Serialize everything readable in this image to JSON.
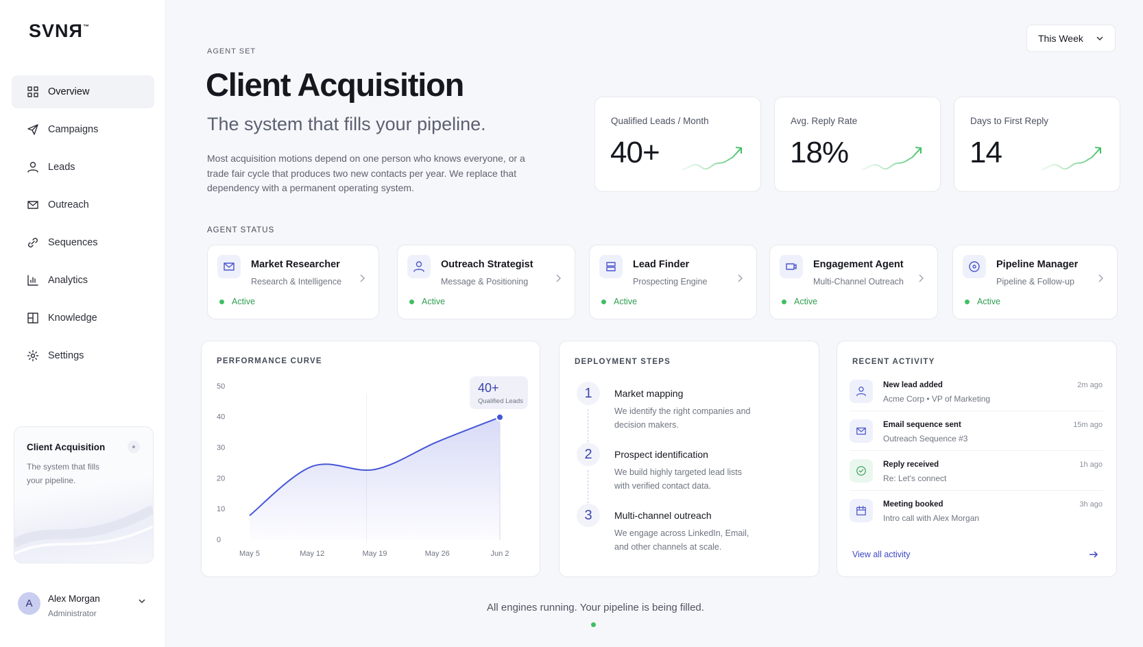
{
  "sidebar": {
    "logo": "SVNЯ",
    "trademark": "™",
    "nav": [
      "Overview",
      "Campaigns",
      "Leads",
      "Outreach",
      "Sequences",
      "Analytics",
      "Knowledge",
      "Settings"
    ],
    "card": {
      "title": "Client Acquisition",
      "text": "The system that fills your pipeline."
    },
    "user": {
      "initial": "A",
      "name": "Alex Morgan",
      "role": "Administrator"
    }
  },
  "header": {
    "eyebrow": "AGENT SET",
    "title": "Client Acquisition",
    "subtitle": "The system that fills your pipeline.",
    "description": "Most acquisition motions depend on one person who knows everyone, or a trade fair cycle that produces two new contacts per year. We replace that dependency with a permanent operating system.",
    "period": "This Week"
  },
  "metrics": [
    {
      "label": "Qualified Leads / Month",
      "value": "40+"
    },
    {
      "label": "Avg. Reply Rate",
      "value": "18%"
    },
    {
      "label": "Days to First Reply",
      "value": "14"
    }
  ],
  "agent_status": {
    "title": "AGENT STATUS",
    "agents": [
      {
        "name": "Market Researcher",
        "role": "Research & Intelligence",
        "status": "Active"
      },
      {
        "name": "Outreach Strategist",
        "role": "Message & Positioning",
        "status": "Active"
      },
      {
        "name": "Lead Finder",
        "role": "Prospecting Engine",
        "status": "Active"
      },
      {
        "name": "Engagement Agent",
        "role": "Multi-Channel Outreach",
        "status": "Active"
      },
      {
        "name": "Pipeline Manager",
        "role": "Pipeline & Follow-up",
        "status": "Active"
      }
    ]
  },
  "performance": {
    "title": "PERFORMANCE CURVE",
    "callout": {
      "value": "40+",
      "label": "Qualified Leads"
    },
    "chart": {
      "type": "line",
      "categories": [
        "May 5",
        "May 12",
        "May 19",
        "May 26",
        "Jun 2"
      ],
      "values": [
        8,
        24,
        23,
        32,
        40
      ],
      "ylim": [
        0,
        50
      ],
      "yticks": [
        0,
        10,
        20,
        30,
        40,
        50
      ],
      "color": "#4656d6"
    }
  },
  "deployment": {
    "title": "DEPLOYMENT STEPS",
    "steps": [
      {
        "number": 1,
        "title": "Market mapping",
        "text": "We identify the right companies and decision makers."
      },
      {
        "number": 2,
        "title": "Prospect identification",
        "text": "We build highly targeted lead lists with verified contact data."
      },
      {
        "number": 3,
        "title": "Multi-channel outreach",
        "text": "We engage across LinkedIn, Email, and other channels at scale."
      }
    ]
  },
  "activity": {
    "title": "RECENT ACTIVITY",
    "items": [
      {
        "title": "New lead added",
        "detail": "Acme Corp • VP of Marketing",
        "time": "2m ago"
      },
      {
        "title": "Email sequence sent",
        "detail": "Outreach Sequence #3",
        "time": "15m ago"
      },
      {
        "title": "Reply received",
        "detail": "Re: Let's connect",
        "time": "1h ago"
      },
      {
        "title": "Meeting booked",
        "detail": "Intro call with Alex Morgan",
        "time": "3h ago"
      }
    ],
    "link": "View all activity"
  },
  "footer": {
    "status": "All engines running. Your pipeline is being filled."
  }
}
